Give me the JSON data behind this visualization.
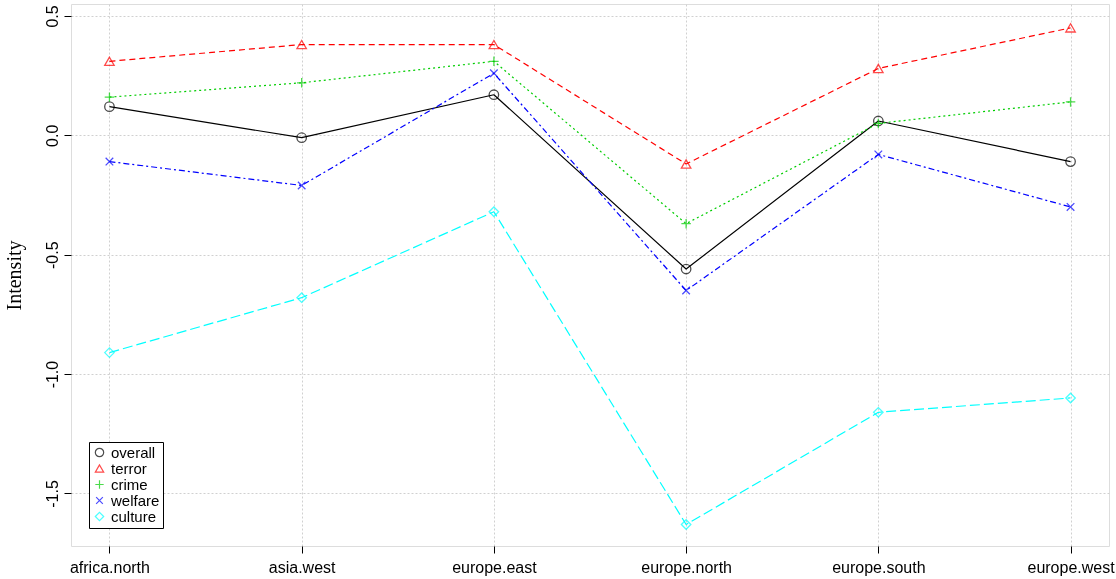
{
  "chart_data": {
    "type": "line",
    "ylabel": "Intensity",
    "categories": [
      "africa.north",
      "asia.west",
      "europe.east",
      "europe.north",
      "europe.south",
      "europe.west"
    ],
    "series": [
      {
        "name": "overall",
        "color": "#000000",
        "marker": "circle",
        "line_style": "solid",
        "values": [
          0.12,
          -0.01,
          0.17,
          -0.56,
          0.06,
          -0.11
        ]
      },
      {
        "name": "terror",
        "color": "#ff0000",
        "marker": "triangle",
        "line_style": "dashed",
        "values": [
          0.31,
          0.38,
          0.38,
          -0.12,
          0.28,
          0.45
        ]
      },
      {
        "name": "crime",
        "color": "#00cd00",
        "marker": "cross",
        "line_style": "dotted",
        "values": [
          0.16,
          0.22,
          0.31,
          -0.37,
          0.05,
          0.14
        ]
      },
      {
        "name": "welfare",
        "color": "#0000ff",
        "marker": "x",
        "line_style": "dashdot",
        "values": [
          -0.11,
          -0.21,
          0.26,
          -0.65,
          -0.08,
          -0.3
        ]
      },
      {
        "name": "culture",
        "color": "#00ffff",
        "marker": "diamond",
        "line_style": "longdash",
        "values": [
          -0.91,
          -0.68,
          -0.32,
          -1.63,
          -1.16,
          -1.1
        ]
      }
    ],
    "ylim": [
      -1.72,
      0.55
    ],
    "yticks": [
      {
        "value": -1.5,
        "label": "-1.5"
      },
      {
        "value": -1.0,
        "label": "-1.0"
      },
      {
        "value": -0.5,
        "label": "-0.5"
      },
      {
        "value": 0,
        "label": "0.0"
      },
      {
        "value": 0.5,
        "label": "0.5"
      }
    ],
    "grid": true,
    "legend": "bottom left"
  }
}
